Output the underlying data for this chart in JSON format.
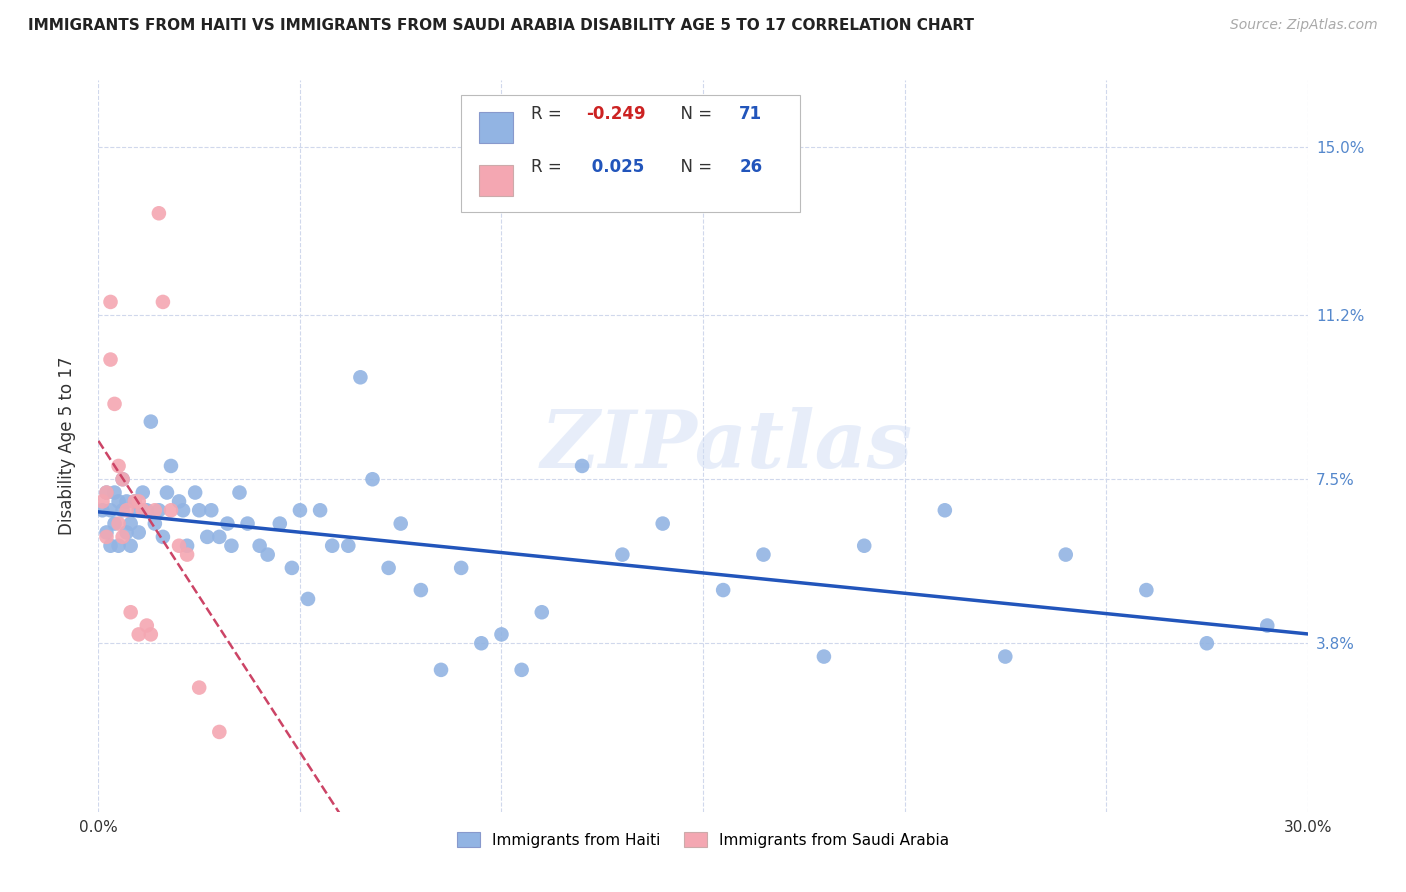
{
  "title": "IMMIGRANTS FROM HAITI VS IMMIGRANTS FROM SAUDI ARABIA DISABILITY AGE 5 TO 17 CORRELATION CHART",
  "source": "Source: ZipAtlas.com",
  "ylabel": "Disability Age 5 to 17",
  "xlim": [
    0.0,
    0.3
  ],
  "ylim": [
    0.0,
    0.165
  ],
  "yticks": [
    0.038,
    0.075,
    0.112,
    0.15
  ],
  "ytick_labels": [
    "3.8%",
    "7.5%",
    "11.2%",
    "15.0%"
  ],
  "xticks": [
    0.0,
    0.05,
    0.1,
    0.15,
    0.2,
    0.25,
    0.3
  ],
  "xtick_labels": [
    "0.0%",
    "",
    "",
    "",
    "",
    "",
    "30.0%"
  ],
  "haiti_R": -0.249,
  "haiti_N": 71,
  "saudi_R": 0.025,
  "saudi_N": 26,
  "haiti_color": "#92b4e3",
  "saudi_color": "#f4a7b2",
  "haiti_line_color": "#2255bb",
  "saudi_line_color": "#cc4466",
  "background_color": "#ffffff",
  "grid_color": "#d0d8ec",
  "watermark": "ZIPatlas",
  "haiti_x": [
    0.001,
    0.002,
    0.002,
    0.003,
    0.003,
    0.004,
    0.004,
    0.005,
    0.005,
    0.006,
    0.006,
    0.007,
    0.007,
    0.008,
    0.008,
    0.009,
    0.01,
    0.01,
    0.011,
    0.012,
    0.013,
    0.014,
    0.015,
    0.016,
    0.017,
    0.018,
    0.02,
    0.021,
    0.022,
    0.024,
    0.025,
    0.027,
    0.028,
    0.03,
    0.032,
    0.033,
    0.035,
    0.037,
    0.04,
    0.042,
    0.045,
    0.048,
    0.05,
    0.052,
    0.055,
    0.058,
    0.062,
    0.065,
    0.068,
    0.072,
    0.075,
    0.08,
    0.085,
    0.09,
    0.095,
    0.1,
    0.105,
    0.11,
    0.12,
    0.13,
    0.14,
    0.155,
    0.165,
    0.18,
    0.19,
    0.21,
    0.225,
    0.24,
    0.26,
    0.275,
    0.29
  ],
  "haiti_y": [
    0.068,
    0.072,
    0.063,
    0.068,
    0.06,
    0.072,
    0.065,
    0.07,
    0.06,
    0.068,
    0.075,
    0.063,
    0.07,
    0.065,
    0.06,
    0.07,
    0.068,
    0.063,
    0.072,
    0.068,
    0.088,
    0.065,
    0.068,
    0.062,
    0.072,
    0.078,
    0.07,
    0.068,
    0.06,
    0.072,
    0.068,
    0.062,
    0.068,
    0.062,
    0.065,
    0.06,
    0.072,
    0.065,
    0.06,
    0.058,
    0.065,
    0.055,
    0.068,
    0.048,
    0.068,
    0.06,
    0.06,
    0.098,
    0.075,
    0.055,
    0.065,
    0.05,
    0.032,
    0.055,
    0.038,
    0.04,
    0.032,
    0.045,
    0.078,
    0.058,
    0.065,
    0.05,
    0.058,
    0.035,
    0.06,
    0.068,
    0.035,
    0.058,
    0.05,
    0.038,
    0.042
  ],
  "saudi_x": [
    0.001,
    0.002,
    0.002,
    0.003,
    0.003,
    0.004,
    0.005,
    0.005,
    0.006,
    0.006,
    0.007,
    0.008,
    0.009,
    0.01,
    0.01,
    0.011,
    0.012,
    0.013,
    0.014,
    0.015,
    0.016,
    0.018,
    0.02,
    0.022,
    0.025,
    0.03
  ],
  "saudi_y": [
    0.07,
    0.072,
    0.062,
    0.115,
    0.102,
    0.092,
    0.078,
    0.065,
    0.075,
    0.062,
    0.068,
    0.045,
    0.07,
    0.07,
    0.04,
    0.068,
    0.042,
    0.04,
    0.068,
    0.135,
    0.115,
    0.068,
    0.06,
    0.058,
    0.028,
    0.018
  ]
}
